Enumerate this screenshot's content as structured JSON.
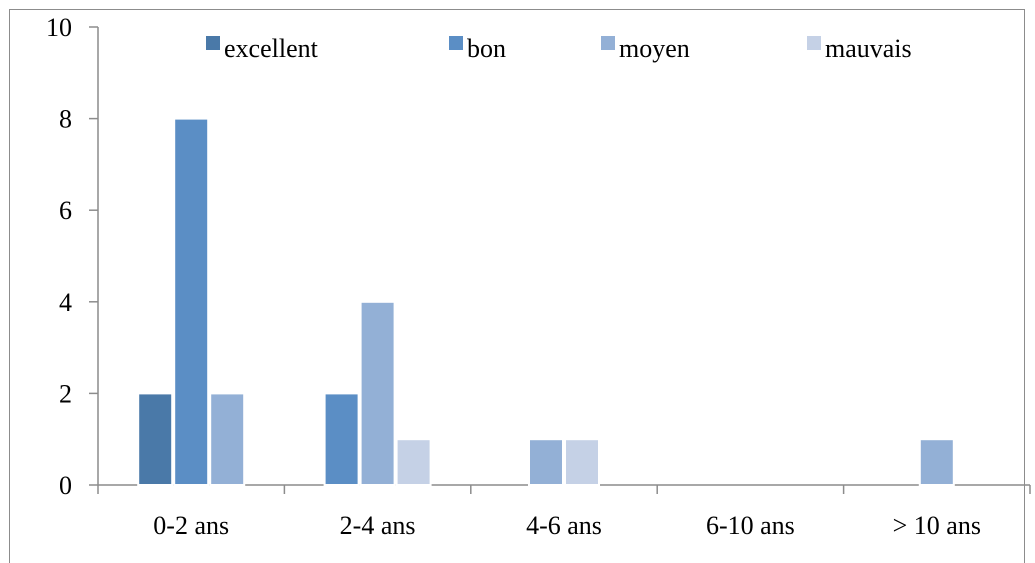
{
  "chart_data": {
    "type": "bar",
    "categories": [
      "0-2 ans",
      "2-4 ans",
      "4-6 ans",
      "6-10 ans",
      "> 10 ans"
    ],
    "series": [
      {
        "name": "excellent",
        "color": "#4a79a8",
        "values": [
          2,
          0,
          0,
          0,
          0
        ]
      },
      {
        "name": "bon",
        "color": "#5b8ec5",
        "values": [
          8,
          2,
          0,
          0,
          0
        ]
      },
      {
        "name": "moyen",
        "color": "#93b0d6",
        "values": [
          2,
          4,
          1,
          0,
          1
        ]
      },
      {
        "name": "mauvais",
        "color": "#c5d1e6",
        "values": [
          0,
          1,
          1,
          0,
          0
        ]
      }
    ],
    "y_ticks": [
      "0",
      "2",
      "4",
      "6",
      "8",
      "10"
    ],
    "ylim": [
      0,
      10
    ],
    "grid": false,
    "legend_position": "top"
  }
}
